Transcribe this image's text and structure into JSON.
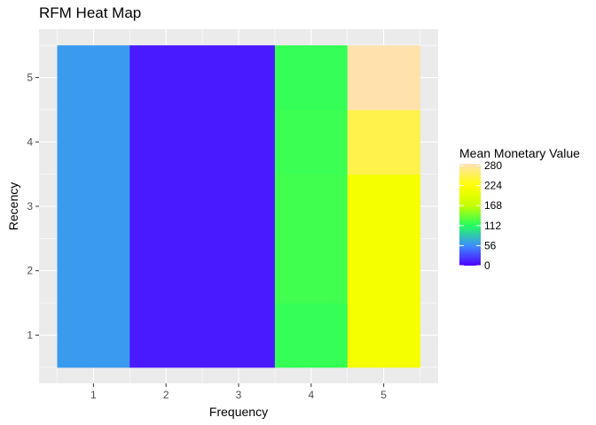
{
  "chart_data": {
    "type": "heatmap",
    "title": "RFM Heat Map",
    "xlabel": "Frequency",
    "ylabel": "Recency",
    "x_categories": [
      "1",
      "2",
      "3",
      "4",
      "5"
    ],
    "y_categories": [
      "1",
      "2",
      "3",
      "4",
      "5"
    ],
    "cells": [
      {
        "x": "1",
        "y": "1",
        "value": 62
      },
      {
        "x": "1",
        "y": "2",
        "value": 62
      },
      {
        "x": "1",
        "y": "3",
        "value": 62
      },
      {
        "x": "1",
        "y": "4",
        "value": 62
      },
      {
        "x": "1",
        "y": "5",
        "value": 62
      },
      {
        "x": "2",
        "y": "1",
        "value": 10
      },
      {
        "x": "2",
        "y": "2",
        "value": 10
      },
      {
        "x": "2",
        "y": "3",
        "value": 10
      },
      {
        "x": "2",
        "y": "4",
        "value": 10
      },
      {
        "x": "2",
        "y": "5",
        "value": 10
      },
      {
        "x": "3",
        "y": "1",
        "value": 10
      },
      {
        "x": "3",
        "y": "2",
        "value": 10
      },
      {
        "x": "3",
        "y": "3",
        "value": 10
      },
      {
        "x": "3",
        "y": "4",
        "value": 10
      },
      {
        "x": "3",
        "y": "5",
        "value": 10
      },
      {
        "x": "4",
        "y": "1",
        "value": 118
      },
      {
        "x": "4",
        "y": "2",
        "value": 122
      },
      {
        "x": "4",
        "y": "3",
        "value": 122
      },
      {
        "x": "4",
        "y": "4",
        "value": 120
      },
      {
        "x": "4",
        "y": "5",
        "value": 118
      },
      {
        "x": "5",
        "y": "1",
        "value": 215
      },
      {
        "x": "5",
        "y": "2",
        "value": 215
      },
      {
        "x": "5",
        "y": "3",
        "value": 215
      },
      {
        "x": "5",
        "y": "4",
        "value": 250
      },
      {
        "x": "5",
        "y": "5",
        "value": 282
      }
    ],
    "legend": {
      "title": "Mean Monetary Value",
      "breaks": [
        "0",
        "56",
        "112",
        "168",
        "224",
        "280"
      ],
      "range": [
        0,
        285
      ],
      "placement": "right",
      "color_stops": [
        {
          "value": 0,
          "color": "#4B00FF"
        },
        {
          "value": 56,
          "color": "#3D8EFF"
        },
        {
          "value": 112,
          "color": "#24FF60"
        },
        {
          "value": 168,
          "color": "#C4FF00"
        },
        {
          "value": 224,
          "color": "#FFFF00"
        },
        {
          "value": 285,
          "color": "#FFE1B4"
        }
      ]
    },
    "panel_background": "#EBEBEB",
    "grid": true
  }
}
